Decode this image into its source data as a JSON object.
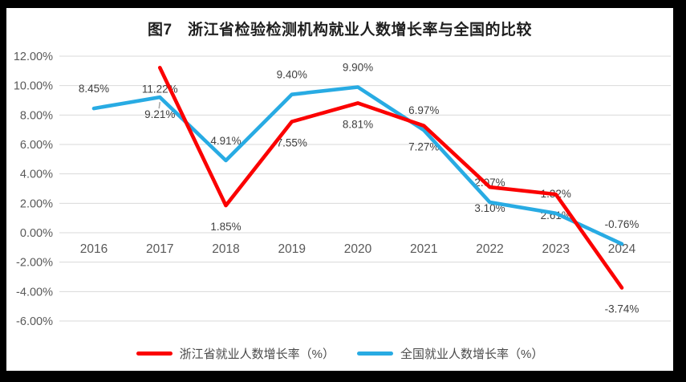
{
  "figure": {
    "title": "图7　浙江省检验检测机构就业人数增长率与全国的比较"
  },
  "chart_data": {
    "type": "line",
    "title": "图7　浙江省检验检测机构就业人数增长率与全国的比较",
    "categories": [
      "2016",
      "2017",
      "2018",
      "2019",
      "2020",
      "2021",
      "2022",
      "2023",
      "2024"
    ],
    "series": [
      {
        "key": "zhejiang",
        "name": "浙江省就业人数增长率（%）",
        "color": "#fb0000",
        "values": [
          null,
          11.22,
          1.85,
          7.55,
          8.81,
          7.27,
          3.1,
          2.61,
          -3.74
        ],
        "labels": [
          "",
          "11.22%",
          "1.85%",
          "7.55%",
          "8.81%",
          "7.27%",
          "3.10%",
          "2.61%",
          "-3.74%"
        ],
        "label_position": "below",
        "label_overrides": {}
      },
      {
        "key": "national",
        "name": "全国就业人数增长率（%）",
        "color": "#28abe3",
        "values": [
          8.45,
          9.21,
          4.91,
          9.4,
          9.9,
          6.97,
          2.07,
          1.32,
          -0.76
        ],
        "labels": [
          "8.45%",
          "9.21%",
          "4.91%",
          "9.40%",
          "9.90%",
          "6.97%",
          "2.07%",
          "1.32%",
          "-0.76%"
        ],
        "label_position": "above",
        "label_overrides": {
          "1": "belowNear"
        }
      }
    ],
    "xlabel": "",
    "ylabel": "",
    "ylim": [
      -6,
      12
    ],
    "y_ticks": [
      "12.00%",
      "10.00%",
      "8.00%",
      "6.00%",
      "4.00%",
      "2.00%",
      "0.00%",
      "-2.00%",
      "-4.00%",
      "-6.00%"
    ],
    "grid": true,
    "legend_position": "bottom",
    "colors": {
      "gridline": "#d9d9d9",
      "axis_text": "#595959",
      "data_label_text": "#3f3f3f",
      "leader_line": "#a6a6a6"
    }
  }
}
